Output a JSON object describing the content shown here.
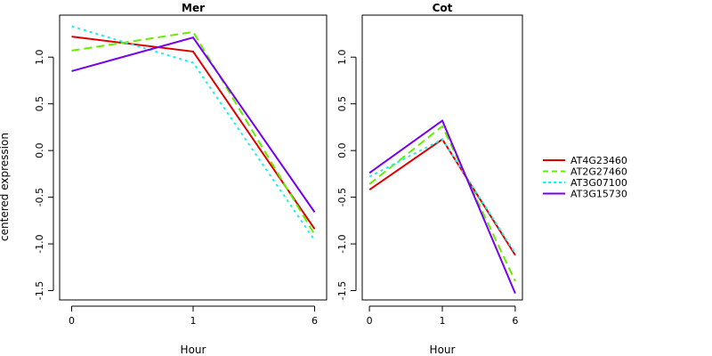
{
  "chart_data": {
    "type": "line",
    "ylabel": "centered expression",
    "legend_position": "right",
    "series_styles": [
      {
        "name": "AT4G23460",
        "color": "#dd0000",
        "dash": "solid"
      },
      {
        "name": "AT2G27460",
        "color": "#66ee00",
        "dash": "dashed"
      },
      {
        "name": "AT3G07100",
        "color": "#22eeee",
        "dash": "dotted"
      },
      {
        "name": "AT3G15730",
        "color": "#7700ee",
        "dash": "solid"
      }
    ],
    "panels": [
      {
        "title": "Mer",
        "xlabel": "Hour",
        "categories": [
          "0",
          "1",
          "6"
        ],
        "ylim": [
          -1.6,
          1.45
        ],
        "yticks": [
          -1.5,
          -1.0,
          -0.5,
          0.0,
          0.5,
          1.0
        ],
        "ytick_labels": [
          "-1.5",
          "-1.0",
          "-0.5",
          "0.0",
          "0.5",
          "1.0"
        ],
        "series": [
          {
            "name": "AT4G23460",
            "values": [
              1.22,
              1.06,
              -0.84
            ]
          },
          {
            "name": "AT2G27460",
            "values": [
              1.07,
              1.27,
              -0.9
            ]
          },
          {
            "name": "AT3G07100",
            "values": [
              1.33,
              0.94,
              -0.96
            ]
          },
          {
            "name": "AT3G15730",
            "values": [
              0.85,
              1.21,
              -0.66
            ]
          }
        ]
      },
      {
        "title": "Cot",
        "xlabel": "Hour",
        "categories": [
          "0",
          "1",
          "6"
        ],
        "ylim": [
          -1.6,
          1.45
        ],
        "yticks": [
          -1.5,
          -1.0,
          -0.5,
          0.0,
          0.5,
          1.0
        ],
        "ytick_labels": [
          "-1.5",
          "-1.0",
          "-0.5",
          "0.0",
          "0.5",
          "1.0"
        ],
        "series": [
          {
            "name": "AT4G23460",
            "values": [
              -0.42,
              0.12,
              -1.12
            ]
          },
          {
            "name": "AT2G27460",
            "values": [
              -0.36,
              0.26,
              -1.4
            ]
          },
          {
            "name": "AT3G07100",
            "values": [
              -0.28,
              0.12,
              -1.1
            ]
          },
          {
            "name": "AT3G15730",
            "values": [
              -0.24,
              0.32,
              -1.53
            ]
          }
        ]
      }
    ]
  }
}
